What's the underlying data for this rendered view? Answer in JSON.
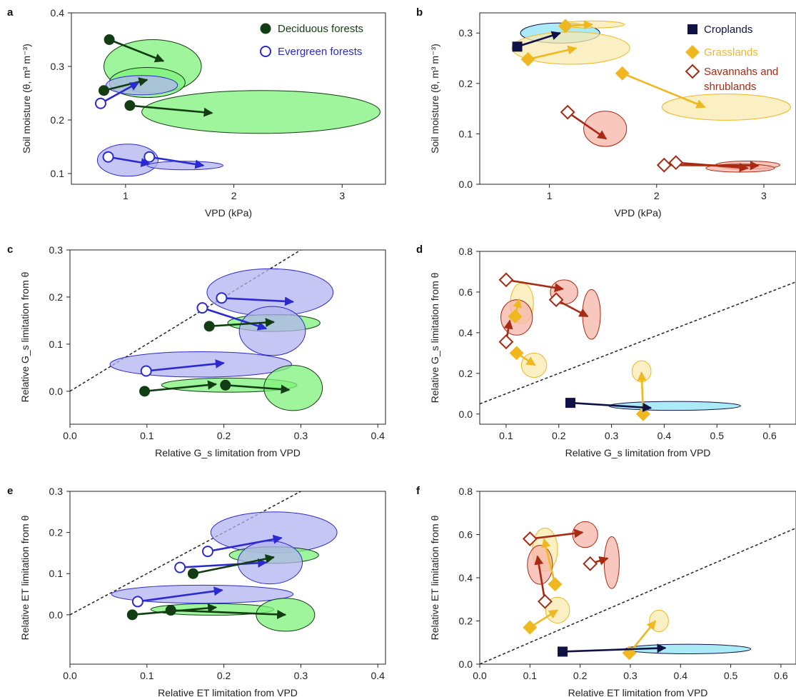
{
  "colors": {
    "deciduous": "#123d12",
    "evergreen": "#2a2ad0",
    "deciduous_fill": "#7ef27a",
    "evergreen_fill": "#b3b3f0",
    "croplands": "#101245",
    "croplands_fill": "#8ee4f4",
    "grasslands": "#f0b820",
    "grasslands_fill": "#faeab0",
    "savannah": "#a82a12",
    "savannah_fill": "#f6b4a8"
  },
  "legend_forest": [
    {
      "key": "deciduous",
      "label": "Deciduous forests"
    },
    {
      "key": "evergreen",
      "label": "Evergreen forests"
    }
  ],
  "legend_land": [
    {
      "key": "croplands",
      "label": "Croplands"
    },
    {
      "key": "grasslands",
      "label": "Grasslands"
    },
    {
      "key": "savannah",
      "label": "Savannahs and",
      "label2": "shrublands"
    }
  ],
  "chart_data": [
    {
      "panel": "a",
      "type": "scatter",
      "xlabel": "VPD (kPa)",
      "ylabel": "Soil moisture (θ, m³ m⁻³)",
      "xlim": [
        0.5,
        3.4
      ],
      "ylim": [
        0.08,
        0.4
      ],
      "xticks": [
        1,
        2,
        3
      ],
      "yticks": [
        0.1,
        0.2,
        0.3,
        0.4
      ],
      "ytick_labels": [
        "0.1",
        "0.2",
        "0.3",
        "0.4"
      ],
      "ellipses": [
        {
          "group": "deciduous",
          "cx": 1.25,
          "cy": 0.3,
          "rx": 0.45,
          "ry": 0.05
        },
        {
          "group": "deciduous",
          "cx": 1.2,
          "cy": 0.27,
          "rx": 0.35,
          "ry": 0.028
        },
        {
          "group": "deciduous",
          "cx": 2.25,
          "cy": 0.215,
          "rx": 1.1,
          "ry": 0.04
        },
        {
          "group": "evergreen",
          "cx": 1.15,
          "cy": 0.265,
          "rx": 0.33,
          "ry": 0.018
        },
        {
          "group": "evergreen",
          "cx": 1.02,
          "cy": 0.125,
          "rx": 0.28,
          "ry": 0.03
        },
        {
          "group": "evergreen",
          "cx": 1.55,
          "cy": 0.115,
          "rx": 0.35,
          "ry": 0.008
        }
      ],
      "arrows": [
        {
          "group": "deciduous",
          "x0": 0.85,
          "y0": 0.35,
          "x1": 1.35,
          "y1": 0.31
        },
        {
          "group": "deciduous",
          "x0": 0.8,
          "y0": 0.255,
          "x1": 1.2,
          "y1": 0.275
        },
        {
          "group": "deciduous",
          "x0": 1.04,
          "y0": 0.227,
          "x1": 1.8,
          "y1": 0.213
        },
        {
          "group": "evergreen",
          "x0": 0.77,
          "y0": 0.231,
          "x1": 1.12,
          "y1": 0.27
        },
        {
          "group": "evergreen",
          "x0": 0.84,
          "y0": 0.131,
          "x1": 1.22,
          "y1": 0.118
        },
        {
          "group": "evergreen",
          "x0": 1.22,
          "y0": 0.131,
          "x1": 1.72,
          "y1": 0.115
        }
      ]
    },
    {
      "panel": "b",
      "type": "scatter",
      "xlabel": "VPD (kPa)",
      "ylabel": "Soil moisture (θ, m³ m⁻³)",
      "xlim": [
        0.35,
        3.3
      ],
      "ylim": [
        0,
        0.34
      ],
      "xticks": [
        1,
        2,
        3
      ],
      "yticks": [
        0,
        0.1,
        0.2,
        0.3
      ],
      "ytick_labels": [
        "0.0",
        "0.1",
        "0.2",
        "0.3"
      ],
      "ellipses": [
        {
          "group": "croplands",
          "cx": 1.1,
          "cy": 0.3,
          "rx": 0.37,
          "ry": 0.02
        },
        {
          "group": "grasslands",
          "cx": 1.4,
          "cy": 0.317,
          "rx": 0.3,
          "ry": 0.007
        },
        {
          "group": "grasslands",
          "cx": 1.2,
          "cy": 0.27,
          "rx": 0.55,
          "ry": 0.032
        },
        {
          "group": "grasslands",
          "cx": 2.65,
          "cy": 0.153,
          "rx": 0.6,
          "ry": 0.026
        },
        {
          "group": "savannah",
          "cx": 1.52,
          "cy": 0.11,
          "rx": 0.2,
          "ry": 0.035
        },
        {
          "group": "savannah",
          "cx": 2.85,
          "cy": 0.038,
          "rx": 0.3,
          "ry": 0.008
        },
        {
          "group": "savannah",
          "cx": 2.78,
          "cy": 0.032,
          "rx": 0.32,
          "ry": 0.008
        }
      ],
      "arrows": [
        {
          "group": "croplands",
          "x0": 0.7,
          "y0": 0.273,
          "x1": 1.1,
          "y1": 0.3
        },
        {
          "group": "grasslands",
          "x0": 1.15,
          "y0": 0.314,
          "x1": 1.4,
          "y1": 0.317
        },
        {
          "group": "grasslands",
          "x0": 0.8,
          "y0": 0.248,
          "x1": 1.25,
          "y1": 0.27
        },
        {
          "group": "grasslands",
          "x0": 1.68,
          "y0": 0.22,
          "x1": 2.45,
          "y1": 0.153
        },
        {
          "group": "savannah",
          "x0": 1.17,
          "y0": 0.143,
          "x1": 1.53,
          "y1": 0.09
        },
        {
          "group": "savannah",
          "x0": 2.07,
          "y0": 0.038,
          "x1": 2.95,
          "y1": 0.037
        },
        {
          "group": "savannah",
          "x0": 2.18,
          "y0": 0.043,
          "x1": 2.85,
          "y1": 0.032
        }
      ]
    },
    {
      "panel": "c",
      "type": "scatter",
      "xlabel": "Relative G_s limitation from VPD",
      "ylabel": "Relative G_s limitation from θ",
      "xlim": [
        0,
        0.41
      ],
      "ylim": [
        -0.07,
        0.3
      ],
      "xticks": [
        0,
        0.1,
        0.2,
        0.3,
        0.4
      ],
      "xtick_labels": [
        "0.0",
        "0.1",
        "0.2",
        "0.3",
        "0.4"
      ],
      "yticks": [
        0,
        0.1,
        0.2,
        0.3
      ],
      "ytick_labels": [
        "0.0",
        "0.1",
        "0.2",
        "0.3"
      ],
      "diagonal": true,
      "ellipses": [
        {
          "group": "evergreen",
          "cx": 0.26,
          "cy": 0.21,
          "rx": 0.082,
          "ry": 0.05
        },
        {
          "group": "deciduous",
          "cx": 0.265,
          "cy": 0.145,
          "rx": 0.06,
          "ry": 0.018
        },
        {
          "group": "evergreen",
          "cx": 0.263,
          "cy": 0.128,
          "rx": 0.043,
          "ry": 0.052
        },
        {
          "group": "evergreen",
          "cx": 0.17,
          "cy": 0.057,
          "rx": 0.118,
          "ry": 0.027
        },
        {
          "group": "deciduous",
          "cx": 0.207,
          "cy": 0.013,
          "rx": 0.088,
          "ry": 0.015
        },
        {
          "group": "deciduous",
          "cx": 0.29,
          "cy": 0.007,
          "rx": 0.038,
          "ry": 0.048
        }
      ],
      "arrows": [
        {
          "group": "evergreen",
          "x0": 0.197,
          "y0": 0.198,
          "x1": 0.29,
          "y1": 0.19
        },
        {
          "group": "evergreen",
          "x0": 0.172,
          "y0": 0.177,
          "x1": 0.255,
          "y1": 0.133
        },
        {
          "group": "deciduous",
          "x0": 0.181,
          "y0": 0.138,
          "x1": 0.265,
          "y1": 0.147
        },
        {
          "group": "evergreen",
          "x0": 0.099,
          "y0": 0.043,
          "x1": 0.2,
          "y1": 0.06
        },
        {
          "group": "deciduous",
          "x0": 0.097,
          "y0": 0.0,
          "x1": 0.19,
          "y1": 0.015
        },
        {
          "group": "deciduous",
          "x0": 0.202,
          "y0": 0.013,
          "x1": 0.285,
          "y1": 0.003
        }
      ]
    },
    {
      "panel": "d",
      "type": "scatter",
      "xlabel": "Relative G_s limitation from VPD",
      "ylabel": "Relative G_s limitation from θ",
      "xlim": [
        0.05,
        0.65
      ],
      "ylim": [
        -0.05,
        0.8
      ],
      "xticks": [
        0.1,
        0.2,
        0.3,
        0.4,
        0.5,
        0.6
      ],
      "xtick_labels": [
        "0.1",
        "0.2",
        "0.3",
        "0.4",
        "0.5",
        "0.6"
      ],
      "yticks": [
        0,
        0.2,
        0.4,
        0.6,
        0.8
      ],
      "ytick_labels": [
        "0.0",
        "0.2",
        "0.4",
        "0.6",
        "0.8"
      ],
      "diagonal": true,
      "ellipses": [
        {
          "group": "savannah",
          "cx": 0.21,
          "cy": 0.6,
          "rx": 0.026,
          "ry": 0.06
        },
        {
          "group": "grasslands",
          "cx": 0.13,
          "cy": 0.545,
          "rx": 0.022,
          "ry": 0.1
        },
        {
          "group": "savannah",
          "cx": 0.12,
          "cy": 0.475,
          "rx": 0.03,
          "ry": 0.087
        },
        {
          "group": "savannah",
          "cx": 0.262,
          "cy": 0.49,
          "rx": 0.017,
          "ry": 0.122
        },
        {
          "group": "grasslands",
          "cx": 0.153,
          "cy": 0.24,
          "rx": 0.024,
          "ry": 0.06
        },
        {
          "group": "grasslands",
          "cx": 0.357,
          "cy": 0.21,
          "rx": 0.018,
          "ry": 0.052
        },
        {
          "group": "croplands",
          "cx": 0.42,
          "cy": 0.04,
          "rx": 0.125,
          "ry": 0.022
        }
      ],
      "arrows": [
        {
          "group": "savannah",
          "x0": 0.1,
          "y0": 0.66,
          "x1": 0.208,
          "y1": 0.615
        },
        {
          "group": "savannah",
          "x0": 0.195,
          "y0": 0.562,
          "x1": 0.255,
          "y1": 0.48
        },
        {
          "group": "grasslands",
          "x0": 0.117,
          "y0": 0.48,
          "x1": 0.125,
          "y1": 0.565
        },
        {
          "group": "savannah",
          "x0": 0.1,
          "y0": 0.355,
          "x1": 0.107,
          "y1": 0.46
        },
        {
          "group": "grasslands",
          "x0": 0.12,
          "y0": 0.3,
          "x1": 0.155,
          "y1": 0.24
        },
        {
          "group": "grasslands",
          "x0": 0.36,
          "y0": 0.0,
          "x1": 0.357,
          "y1": 0.205
        },
        {
          "group": "croplands",
          "x0": 0.222,
          "y0": 0.055,
          "x1": 0.375,
          "y1": 0.03
        }
      ]
    },
    {
      "panel": "e",
      "type": "scatter",
      "xlabel": "Relative ET limitation from VPD",
      "ylabel": "Relative ET limitation from θ",
      "xlim": [
        0,
        0.41
      ],
      "ylim": [
        -0.12,
        0.3
      ],
      "xticks": [
        0,
        0.1,
        0.2,
        0.3,
        0.4
      ],
      "xtick_labels": [
        "0.0",
        "0.1",
        "0.2",
        "0.3",
        "0.4"
      ],
      "yticks": [
        0,
        0.1,
        0.2,
        0.3
      ],
      "ytick_labels": [
        "0.0",
        "0.1",
        "0.2",
        "0.3"
      ],
      "diagonal": true,
      "ellipses": [
        {
          "group": "evergreen",
          "cx": 0.265,
          "cy": 0.2,
          "rx": 0.082,
          "ry": 0.05
        },
        {
          "group": "deciduous",
          "cx": 0.265,
          "cy": 0.145,
          "rx": 0.058,
          "ry": 0.02
        },
        {
          "group": "evergreen",
          "cx": 0.26,
          "cy": 0.127,
          "rx": 0.042,
          "ry": 0.052
        },
        {
          "group": "evergreen",
          "cx": 0.172,
          "cy": 0.05,
          "rx": 0.118,
          "ry": 0.022
        },
        {
          "group": "deciduous",
          "cx": 0.185,
          "cy": 0.013,
          "rx": 0.08,
          "ry": 0.014
        },
        {
          "group": "deciduous",
          "cx": 0.28,
          "cy": 0.0,
          "rx": 0.038,
          "ry": 0.04
        }
      ],
      "arrows": [
        {
          "group": "evergreen",
          "x0": 0.179,
          "y0": 0.154,
          "x1": 0.275,
          "y1": 0.187
        },
        {
          "group": "evergreen",
          "x0": 0.143,
          "y0": 0.115,
          "x1": 0.255,
          "y1": 0.127
        },
        {
          "group": "deciduous",
          "x0": 0.16,
          "y0": 0.1,
          "x1": 0.265,
          "y1": 0.14
        },
        {
          "group": "evergreen",
          "x0": 0.088,
          "y0": 0.032,
          "x1": 0.198,
          "y1": 0.06
        },
        {
          "group": "deciduous",
          "x0": 0.081,
          "y0": 0.0,
          "x1": 0.19,
          "y1": 0.018
        },
        {
          "group": "deciduous",
          "x0": 0.131,
          "y0": 0.011,
          "x1": 0.28,
          "y1": 0.0
        }
      ]
    },
    {
      "panel": "f",
      "type": "scatter",
      "xlabel": "Relative ET limitation from VPD",
      "ylabel": "Relative ET limitation from θ",
      "xlim": [
        0,
        0.63
      ],
      "ylim": [
        0,
        0.8
      ],
      "xticks": [
        0,
        0.1,
        0.2,
        0.3,
        0.4,
        0.5,
        0.6
      ],
      "xtick_labels": [
        "0.0",
        "0.1",
        "0.2",
        "0.3",
        "0.4",
        "0.5",
        "0.6"
      ],
      "yticks": [
        0,
        0.2,
        0.4,
        0.6,
        0.8
      ],
      "ytick_labels": [
        "0.0",
        "0.2",
        "0.4",
        "0.6",
        "0.8"
      ],
      "diagonal": true,
      "ellipses": [
        {
          "group": "grasslands",
          "cx": 0.13,
          "cy": 0.53,
          "rx": 0.025,
          "ry": 0.1
        },
        {
          "group": "savannah",
          "cx": 0.21,
          "cy": 0.6,
          "rx": 0.025,
          "ry": 0.06
        },
        {
          "group": "savannah",
          "cx": 0.12,
          "cy": 0.46,
          "rx": 0.025,
          "ry": 0.09
        },
        {
          "group": "savannah",
          "cx": 0.263,
          "cy": 0.47,
          "rx": 0.015,
          "ry": 0.12
        },
        {
          "group": "grasslands",
          "cx": 0.155,
          "cy": 0.25,
          "rx": 0.024,
          "ry": 0.06
        },
        {
          "group": "grasslands",
          "cx": 0.357,
          "cy": 0.2,
          "rx": 0.019,
          "ry": 0.05
        },
        {
          "group": "croplands",
          "cx": 0.415,
          "cy": 0.07,
          "rx": 0.125,
          "ry": 0.022
        }
      ],
      "arrows": [
        {
          "group": "savannah",
          "x0": 0.1,
          "y0": 0.58,
          "x1": 0.205,
          "y1": 0.61
        },
        {
          "group": "grasslands",
          "x0": 0.15,
          "y0": 0.37,
          "x1": 0.128,
          "y1": 0.58
        },
        {
          "group": "savannah",
          "x0": 0.13,
          "y0": 0.29,
          "x1": 0.115,
          "y1": 0.5
        },
        {
          "group": "savannah",
          "x0": 0.22,
          "y0": 0.465,
          "x1": 0.255,
          "y1": 0.49
        },
        {
          "group": "grasslands",
          "x0": 0.1,
          "y0": 0.17,
          "x1": 0.155,
          "y1": 0.25
        },
        {
          "group": "grasslands",
          "x0": 0.298,
          "y0": 0.052,
          "x1": 0.35,
          "y1": 0.2
        },
        {
          "group": "croplands",
          "x0": 0.165,
          "y0": 0.058,
          "x1": 0.37,
          "y1": 0.075
        }
      ]
    }
  ]
}
